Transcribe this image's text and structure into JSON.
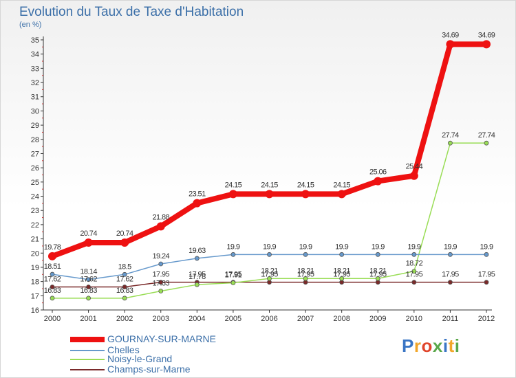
{
  "header": {
    "title": "Evolution du Taux de Taxe d'Habitation",
    "unit": "(en %)"
  },
  "logo": {
    "letters": [
      "P",
      "r",
      "o",
      "x",
      "i",
      "t",
      "i"
    ],
    "colors": [
      "#3a75c4",
      "#f2a62a",
      "#e0452b",
      "#5aa84b",
      "#3a75c4",
      "#f2a62a",
      "#5aa84b"
    ]
  },
  "chart_data": {
    "type": "line",
    "x": [
      "2000",
      "2001",
      "2002",
      "2003",
      "2004",
      "2005",
      "2006",
      "2007",
      "2008",
      "2009",
      "2010",
      "2011",
      "2012"
    ],
    "ylim": [
      16,
      35
    ],
    "yticks": [
      16,
      17,
      18,
      19,
      20,
      21,
      22,
      23,
      24,
      25,
      26,
      27,
      28,
      29,
      30,
      31,
      32,
      33,
      34,
      35
    ],
    "grid": false,
    "legend_position": "bottom-left",
    "series": [
      {
        "name": "GOURNAY-SUR-MARNE",
        "color": "#ee1111",
        "values": [
          19.78,
          20.74,
          20.74,
          21.88,
          23.51,
          24.15,
          24.15,
          24.15,
          24.15,
          25.06,
          25.44,
          34.69,
          34.69
        ],
        "labels": [
          "19.78",
          "20.74",
          "20.74",
          "21.88",
          "23.51",
          "24.15",
          "24.15",
          "24.15",
          "24.15",
          "25.06",
          "25.44",
          "34.69",
          "34.69"
        ]
      },
      {
        "name": "Chelles",
        "color": "#6699cc",
        "values": [
          18.51,
          18.14,
          18.5,
          19.24,
          19.63,
          19.9,
          19.9,
          19.9,
          19.9,
          19.9,
          19.9,
          19.9,
          19.9
        ],
        "labels": [
          "18.51",
          "18.14",
          "18.5",
          "19.24",
          "19.63",
          "19.9",
          "19.9",
          "19.9",
          "19.9",
          "19.9",
          "19.9",
          "19.9",
          "19.9"
        ]
      },
      {
        "name": "Noisy-le-Grand",
        "color": "#99dd55",
        "values": [
          16.83,
          16.83,
          16.83,
          17.33,
          17.78,
          17.91,
          18.21,
          18.21,
          18.21,
          18.21,
          18.72,
          27.74,
          27.74
        ],
        "labels": [
          "16.83",
          "16.83",
          "16.83",
          "17.33",
          "17.78",
          "17.91",
          "18.21",
          "18.21",
          "18.21",
          "18.21",
          "18.72",
          "27.74",
          "27.74"
        ]
      },
      {
        "name": "Champs-sur-Marne",
        "color": "#7a2a2a",
        "values": [
          17.62,
          17.62,
          17.62,
          17.95,
          17.95,
          17.95,
          17.95,
          17.95,
          17.95,
          17.95,
          17.95,
          17.95,
          17.95
        ],
        "labels": [
          "17.62",
          "17.62",
          "17.62",
          "17.95",
          "17.95",
          "17.95",
          "17.95",
          "17.95",
          "17.95",
          "17.95",
          "17.95",
          "17.95",
          "17.95"
        ]
      }
    ]
  }
}
